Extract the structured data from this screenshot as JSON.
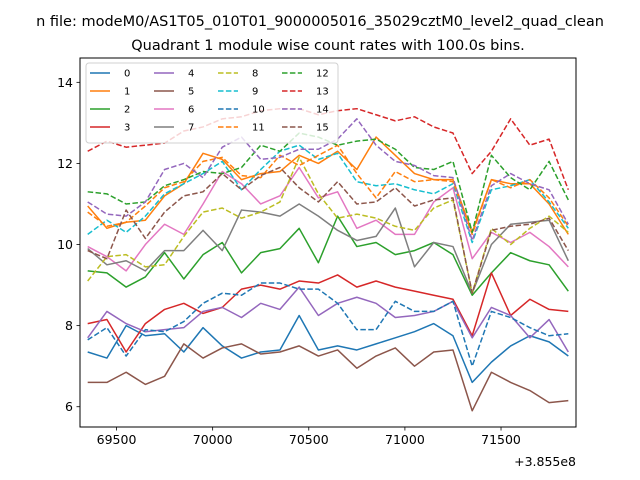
{
  "chart_data": {
    "type": "line",
    "title": "n file: modeM0/AS1T05_010T01_9000005016_35029cztM0_level2_quad_clean",
    "subtitle": "Quadrant 1 module wise count rates with 100.0s bins.",
    "xlabel": "",
    "ylabel": "",
    "offset_label": "+3.855e8",
    "xlim": [
      69310,
      71890
    ],
    "ylim": [
      5.5,
      14.6
    ],
    "xticks": [
      69500,
      70000,
      70500,
      71000,
      71500
    ],
    "xtick_labels": [
      "69500",
      "70000",
      "70500",
      "71000",
      "71500"
    ],
    "yticks": [
      6,
      8,
      10,
      12,
      14
    ],
    "ytick_labels": [
      "6",
      "8",
      "10",
      "12",
      "14"
    ],
    "grid": false,
    "legend_position": "top-left",
    "x": [
      69350,
      69450,
      69550,
      69650,
      69750,
      69850,
      69950,
      70050,
      70150,
      70250,
      70350,
      70450,
      70550,
      70650,
      70750,
      70850,
      70950,
      71050,
      71150,
      71250,
      71350,
      71450,
      71550,
      71650,
      71750,
      71850
    ],
    "series": [
      {
        "name": "0",
        "color": "#1f77b4",
        "dash": "solid",
        "values": [
          7.35,
          7.2,
          8.0,
          7.75,
          7.8,
          7.35,
          7.95,
          7.5,
          7.2,
          7.35,
          7.4,
          8.25,
          7.4,
          7.5,
          7.4,
          7.55,
          7.7,
          7.85,
          8.05,
          7.75,
          6.6,
          7.1,
          7.5,
          7.75,
          7.6,
          7.25
        ]
      },
      {
        "name": "1",
        "color": "#ff7f0e",
        "dash": "solid",
        "values": [
          10.95,
          10.4,
          10.55,
          10.6,
          11.2,
          11.5,
          12.25,
          12.1,
          11.6,
          11.75,
          11.8,
          12.2,
          12.0,
          12.3,
          11.85,
          12.65,
          12.2,
          11.75,
          11.6,
          11.6,
          10.3,
          11.6,
          11.5,
          11.5,
          11.0,
          10.25
        ]
      },
      {
        "name": "2",
        "color": "#2ca02c",
        "dash": "solid",
        "values": [
          9.35,
          9.3,
          8.95,
          9.2,
          9.8,
          9.15,
          9.75,
          10.05,
          9.3,
          9.8,
          9.9,
          10.4,
          9.55,
          10.7,
          9.95,
          10.05,
          9.75,
          9.85,
          10.05,
          9.75,
          8.75,
          9.3,
          9.8,
          9.6,
          9.5,
          8.85
        ]
      },
      {
        "name": "3",
        "color": "#d62728",
        "dash": "solid",
        "values": [
          8.05,
          8.15,
          7.35,
          8.05,
          8.4,
          8.55,
          8.3,
          8.45,
          8.9,
          9.0,
          8.9,
          9.1,
          9.05,
          9.25,
          8.95,
          9.1,
          8.95,
          8.85,
          8.75,
          8.65,
          7.75,
          9.3,
          8.25,
          8.65,
          8.4,
          8.35
        ]
      },
      {
        "name": "4",
        "color": "#9467bd",
        "dash": "solid",
        "values": [
          7.7,
          8.35,
          8.05,
          7.85,
          7.9,
          7.95,
          8.35,
          8.45,
          8.2,
          8.55,
          8.4,
          8.95,
          8.25,
          8.55,
          8.7,
          8.55,
          8.2,
          8.25,
          8.35,
          8.6,
          7.7,
          8.45,
          8.25,
          7.7,
          8.15,
          7.35
        ]
      },
      {
        "name": "5",
        "color": "#8c564b",
        "dash": "solid",
        "values": [
          6.6,
          6.6,
          6.85,
          6.55,
          6.75,
          7.55,
          7.2,
          7.45,
          7.55,
          7.3,
          7.35,
          7.5,
          7.25,
          7.4,
          6.95,
          7.25,
          7.45,
          7.0,
          7.35,
          7.4,
          5.9,
          6.85,
          6.6,
          6.4,
          6.1,
          6.15
        ]
      },
      {
        "name": "6",
        "color": "#e377c2",
        "dash": "solid",
        "values": [
          9.95,
          9.7,
          9.35,
          10.0,
          10.5,
          10.25,
          11.0,
          11.8,
          11.5,
          11.0,
          11.2,
          11.9,
          11.15,
          11.3,
          10.4,
          10.6,
          10.25,
          10.25,
          11.05,
          11.4,
          9.65,
          10.3,
          10.05,
          10.3,
          9.95,
          9.45
        ]
      },
      {
        "name": "7",
        "color": "#7f7f7f",
        "dash": "solid",
        "values": [
          9.9,
          9.5,
          9.6,
          9.35,
          9.85,
          9.85,
          10.35,
          9.85,
          10.85,
          10.8,
          10.7,
          11.0,
          10.7,
          10.35,
          10.1,
          10.2,
          10.9,
          9.45,
          10.05,
          9.95,
          8.8,
          10.0,
          10.5,
          10.55,
          10.6,
          9.6
        ]
      },
      {
        "name": "8",
        "color": "#bcbd22",
        "dash": "dashed",
        "values": [
          9.1,
          9.7,
          9.75,
          9.45,
          9.5,
          10.2,
          10.8,
          10.9,
          10.65,
          10.8,
          11.05,
          12.15,
          11.25,
          10.65,
          10.75,
          10.65,
          10.45,
          10.35,
          10.9,
          11.1,
          8.8,
          10.4,
          10.0,
          10.4,
          10.7,
          10.3
        ]
      },
      {
        "name": "9",
        "color": "#17becf",
        "dash": "dashed",
        "values": [
          10.25,
          10.6,
          10.3,
          10.7,
          11.25,
          11.5,
          11.75,
          12.05,
          11.35,
          11.85,
          12.3,
          12.45,
          12.1,
          12.25,
          11.55,
          11.45,
          11.5,
          11.35,
          11.25,
          11.5,
          10.05,
          11.35,
          11.45,
          11.6,
          11.05,
          10.4
        ]
      },
      {
        "name": "10",
        "color": "#1f77b4",
        "dash": "dashed",
        "values": [
          7.65,
          7.95,
          7.25,
          7.9,
          7.85,
          8.1,
          8.55,
          8.8,
          8.75,
          9.05,
          9.05,
          8.9,
          8.9,
          8.55,
          7.9,
          7.9,
          8.6,
          8.35,
          8.35,
          8.6,
          7.0,
          8.35,
          8.2,
          7.95,
          7.75,
          7.8
        ]
      },
      {
        "name": "11",
        "color": "#ff7f0e",
        "dash": "dashed",
        "values": [
          10.8,
          10.45,
          10.55,
          10.95,
          11.4,
          11.55,
          12.05,
          12.15,
          11.7,
          11.65,
          12.2,
          11.95,
          12.2,
          12.45,
          11.75,
          11.15,
          11.8,
          11.55,
          11.6,
          11.55,
          10.25,
          11.6,
          11.4,
          11.6,
          11.15,
          10.45
        ]
      },
      {
        "name": "12",
        "color": "#2ca02c",
        "dash": "dashed",
        "values": [
          11.3,
          11.25,
          11.0,
          11.05,
          11.45,
          11.6,
          11.8,
          11.75,
          11.9,
          12.45,
          12.3,
          12.75,
          12.65,
          12.45,
          12.55,
          12.6,
          12.35,
          11.9,
          11.85,
          12.05,
          10.3,
          12.2,
          11.65,
          11.35,
          12.05,
          11.1
        ]
      },
      {
        "name": "13",
        "color": "#d62728",
        "dash": "dashed",
        "values": [
          12.3,
          12.55,
          12.4,
          12.45,
          12.5,
          12.8,
          12.9,
          13.1,
          13.15,
          13.3,
          13.35,
          13.35,
          13.2,
          13.3,
          13.35,
          13.2,
          13.05,
          13.15,
          12.9,
          12.75,
          11.75,
          12.3,
          13.1,
          12.45,
          12.6,
          11.35
        ]
      },
      {
        "name": "14",
        "color": "#9467bd",
        "dash": "dashed",
        "values": [
          11.05,
          10.75,
          10.7,
          11.05,
          11.85,
          12.0,
          11.65,
          12.4,
          12.65,
          12.1,
          12.15,
          12.35,
          12.35,
          12.6,
          13.1,
          12.45,
          12.05,
          11.95,
          11.7,
          11.65,
          10.1,
          11.45,
          11.75,
          11.5,
          11.35,
          10.5
        ]
      },
      {
        "name": "15",
        "color": "#8c564b",
        "dash": "dashed",
        "values": [
          9.85,
          9.65,
          10.85,
          10.15,
          10.8,
          11.2,
          11.3,
          11.75,
          11.35,
          11.7,
          11.9,
          11.4,
          11.05,
          11.55,
          11.0,
          11.05,
          11.4,
          10.95,
          11.1,
          11.15,
          8.8,
          10.35,
          10.45,
          10.5,
          10.65,
          9.85
        ]
      }
    ]
  }
}
